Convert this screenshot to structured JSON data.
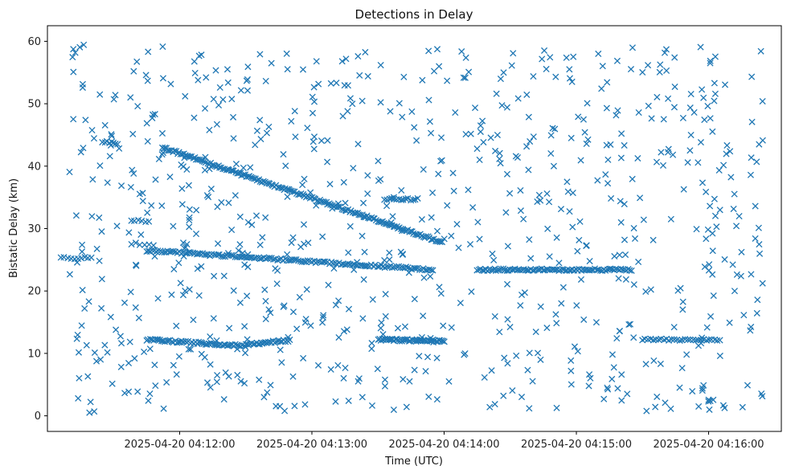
{
  "chart_data": {
    "type": "scatter",
    "title": "Detections in Delay",
    "xlabel": "Time (UTC)",
    "ylabel": "Bistatic Delay (km)",
    "marker": "x",
    "color": "#1f77b4",
    "grid": false,
    "legend": "none",
    "x_ticks": [
      "2025-04-20 04:12:00",
      "2025-04-20 04:13:00",
      "2025-04-20 04:14:00",
      "2025-04-20 04:15:00",
      "2025-04-20 04:16:00"
    ],
    "y_ticks": [
      0,
      10,
      20,
      30,
      40,
      50,
      60
    ],
    "xlim": [
      "2025-04-20 04:11:00",
      "2025-04-20 04:16:33"
    ],
    "ylim": [
      -2.5,
      62.5
    ],
    "tracks": [
      {
        "t_start": "2025-04-20 04:11:52",
        "t_end": "2025-04-20 04:13:59",
        "delay_start": 43.0,
        "delay_end": 27.8,
        "count": 180
      },
      {
        "t_start": "2025-04-20 04:11:45",
        "t_end": "2025-04-20 04:13:55",
        "delay_start": 26.5,
        "delay_end": 23.4,
        "count": 150
      },
      {
        "t_start": "2025-04-20 04:14:15",
        "t_end": "2025-04-20 04:15:25",
        "delay_start": 23.4,
        "delay_end": 23.4,
        "count": 90
      },
      {
        "t_start": "2025-04-20 04:11:45",
        "t_end": "2025-04-20 04:12:30",
        "delay_start": 12.2,
        "delay_end": 11.2,
        "count": 60
      },
      {
        "t_start": "2025-04-20 04:12:30",
        "t_end": "2025-04-20 04:12:50",
        "delay_start": 11.4,
        "delay_end": 12.1,
        "count": 30
      },
      {
        "t_start": "2025-04-20 04:13:30",
        "t_end": "2025-04-20 04:14:00",
        "delay_start": 12.2,
        "delay_end": 12.0,
        "count": 50
      },
      {
        "t_start": "2025-04-20 04:15:30",
        "t_end": "2025-04-20 04:16:05",
        "delay_start": 12.2,
        "delay_end": 12.2,
        "count": 30
      },
      {
        "t_start": "2025-04-20 04:13:33",
        "t_end": "2025-04-20 04:13:48",
        "delay_start": 34.7,
        "delay_end": 34.7,
        "count": 15
      },
      {
        "t_start": "2025-04-20 04:11:06",
        "t_end": "2025-04-20 04:11:20",
        "delay_start": 25.3,
        "delay_end": 25.3,
        "count": 10
      },
      {
        "t_start": "2025-04-20 04:11:25",
        "t_end": "2025-04-20 04:11:32",
        "delay_start": 44.0,
        "delay_end": 43.6,
        "count": 8
      },
      {
        "t_start": "2025-04-20 04:11:38",
        "t_end": "2025-04-20 04:11:46",
        "delay_start": 31.3,
        "delay_end": 31.0,
        "count": 6
      },
      {
        "t_start": "2025-04-20 04:11:38",
        "t_end": "2025-04-20 04:11:48",
        "delay_start": 27.6,
        "delay_end": 27.4,
        "count": 6
      }
    ],
    "clutter": {
      "t_start": "2025-04-20 04:11:10",
      "t_end": "2025-04-20 04:16:25",
      "delay_min": 0.5,
      "delay_max": 59.5,
      "count": 800
    }
  }
}
